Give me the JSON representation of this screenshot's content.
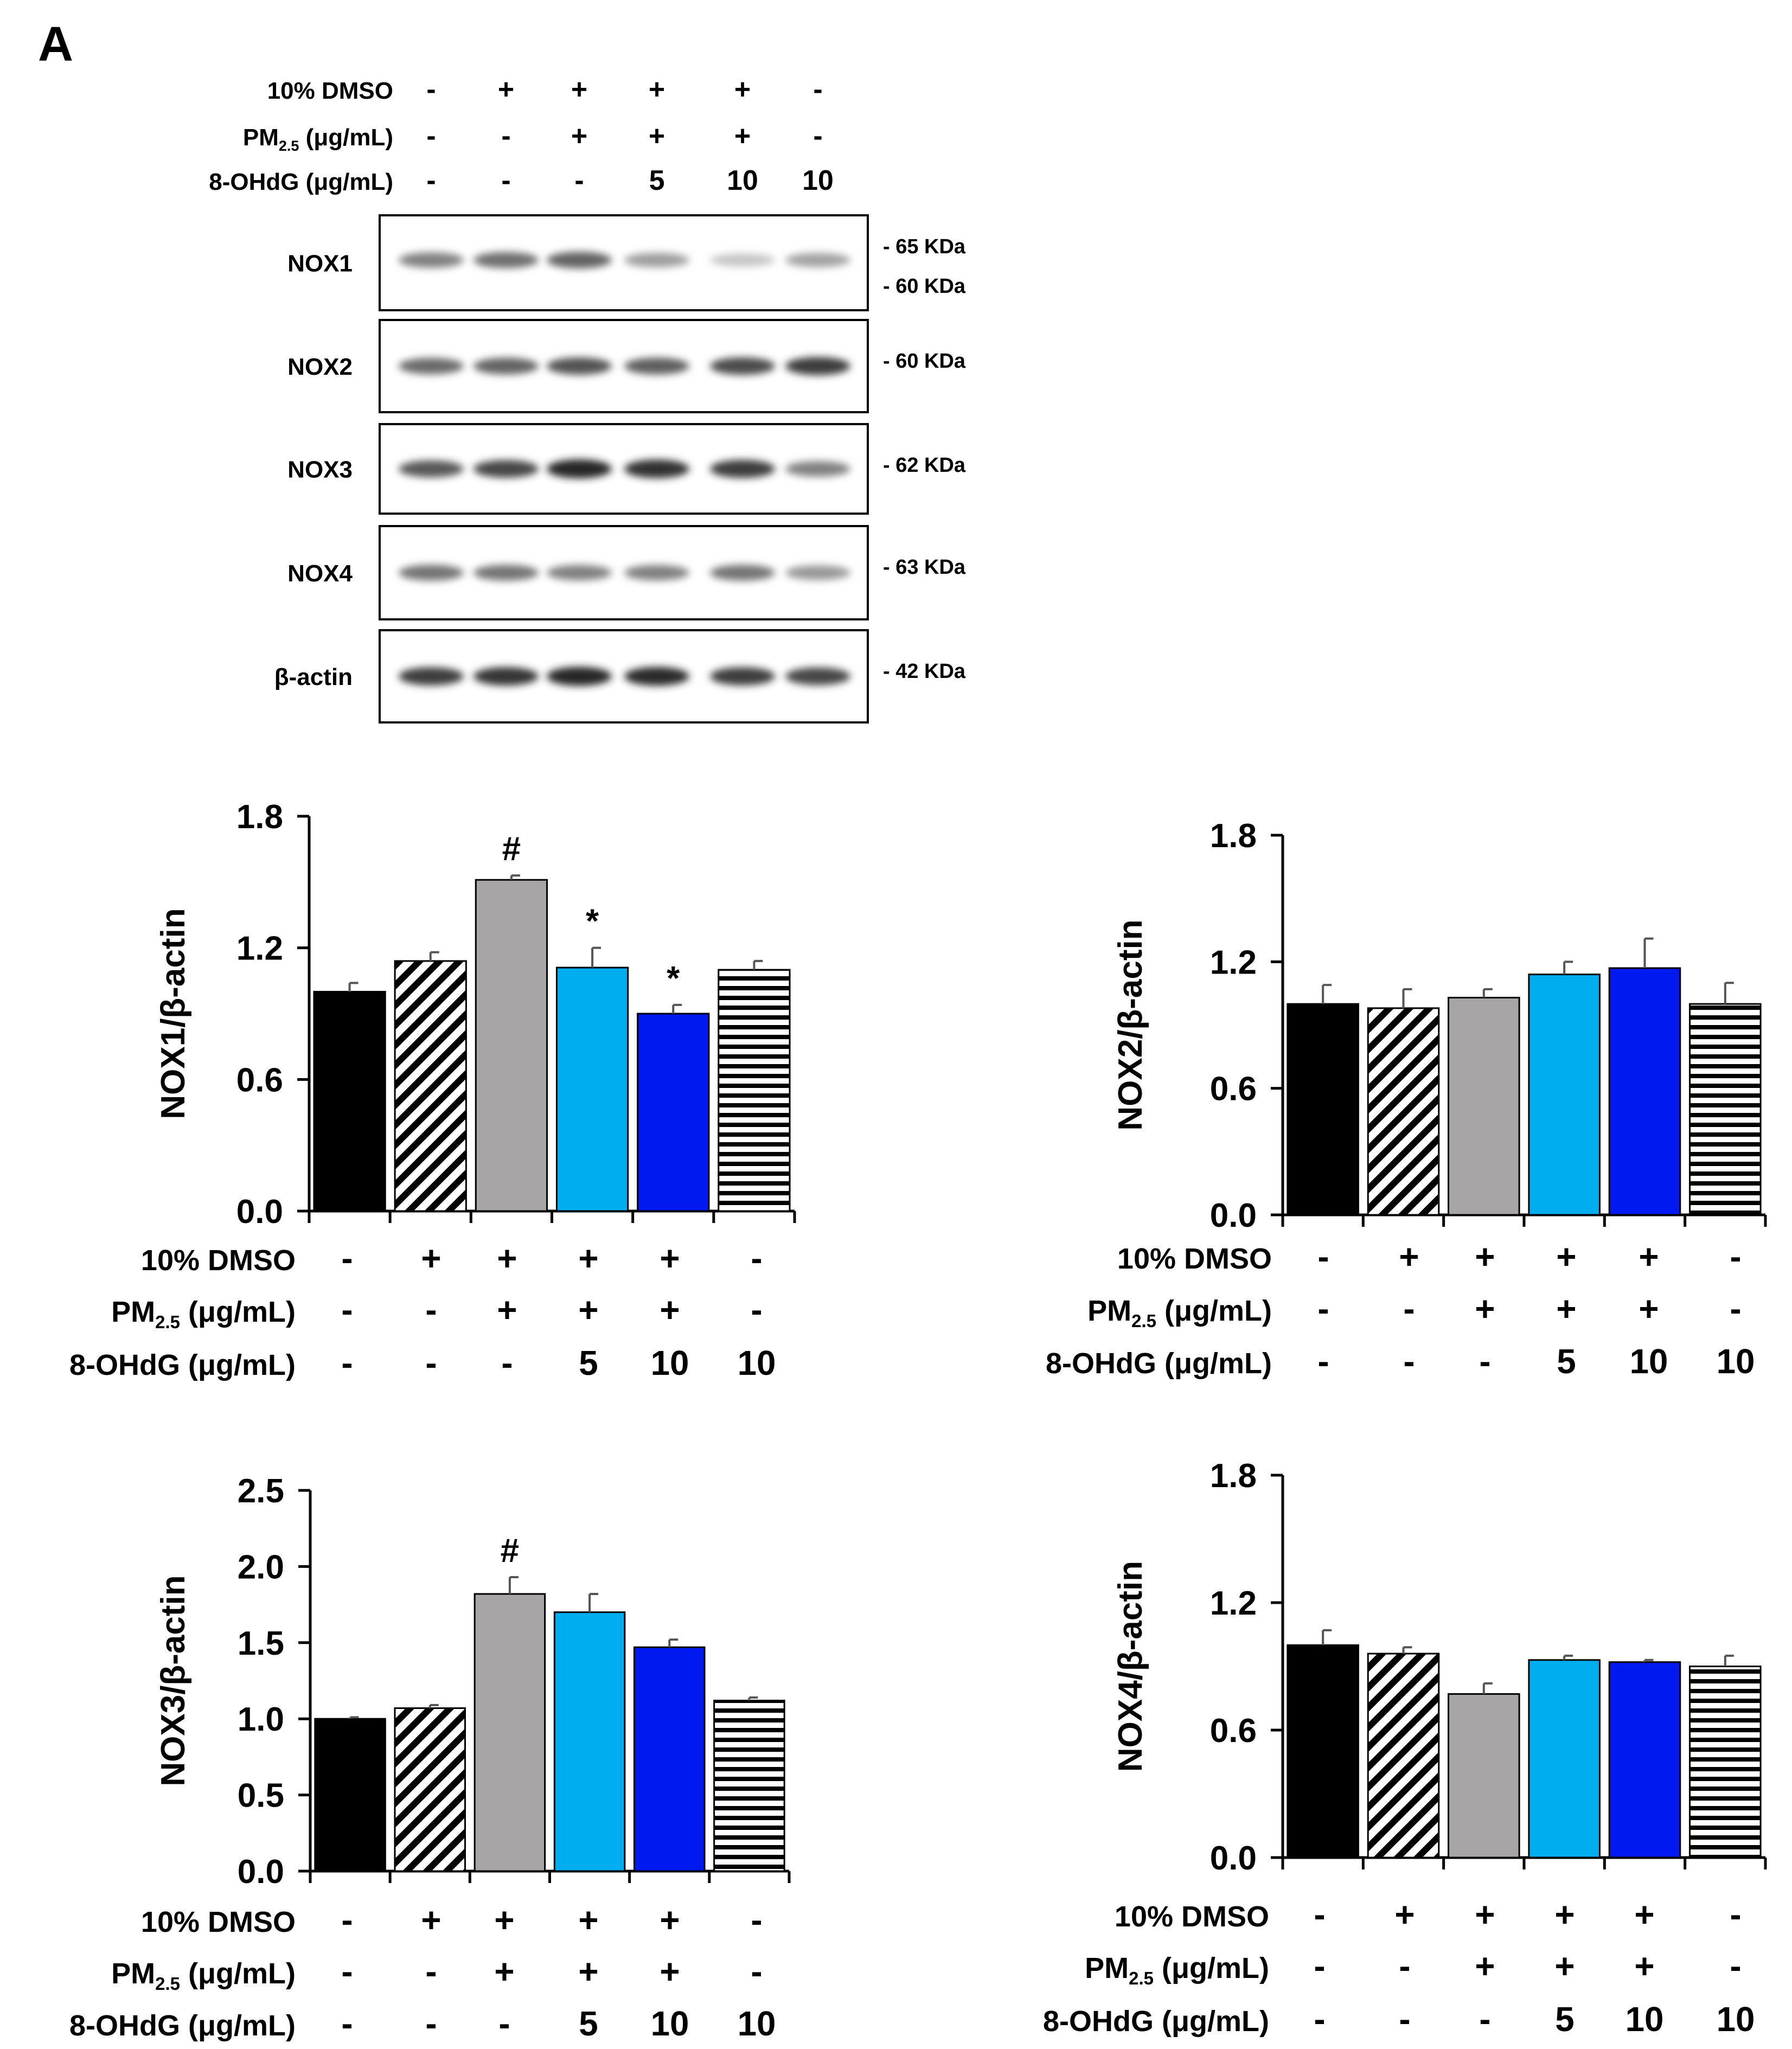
{
  "panel_label": "A",
  "conditions": {
    "row_labels": [
      "10% DMSO",
      "PM2.5 (μg/mL)",
      "8-OHdG (μg/mL)"
    ],
    "dmso": [
      "-",
      "+",
      "+",
      "+",
      "+",
      "-"
    ],
    "pm": [
      "-",
      "-",
      "+",
      "+",
      "+",
      "-"
    ],
    "ohdg": [
      "-",
      "-",
      "-",
      "5",
      "10",
      "10"
    ]
  },
  "blot": {
    "rows": [
      {
        "label": "NOX1",
        "markers": [
          "- 65 KDa",
          "- 60 KDa"
        ],
        "intensity": [
          0.55,
          0.62,
          0.68,
          0.42,
          0.25,
          0.4
        ]
      },
      {
        "label": "NOX2",
        "markers": [
          "- 60 KDa"
        ],
        "intensity": [
          0.65,
          0.68,
          0.75,
          0.7,
          0.78,
          0.85
        ]
      },
      {
        "label": "NOX3",
        "markers": [
          "- 62 KDa"
        ],
        "intensity": [
          0.72,
          0.8,
          0.95,
          0.9,
          0.85,
          0.55
        ]
      },
      {
        "label": "NOX4",
        "markers": [
          "- 63 KDa"
        ],
        "intensity": [
          0.6,
          0.6,
          0.55,
          0.55,
          0.6,
          0.45
        ]
      },
      {
        "label": "β-actin",
        "markers": [
          "- 42 KDa"
        ],
        "intensity": [
          0.85,
          0.88,
          0.95,
          0.92,
          0.85,
          0.8
        ]
      }
    ]
  },
  "colors": {
    "control": "#000000",
    "dmso": "#ffffff",
    "pm": "#a8a5a6",
    "ohdg5": "#00adef",
    "ohdg10": "#0019f0",
    "ohdg_only": "#ffffff"
  },
  "chart_data": [
    {
      "type": "bar",
      "id": "nox1",
      "ylabel": "NOX1/β-actin",
      "yticks": [
        "0.0",
        "0.6",
        "1.2",
        "1.8"
      ],
      "ylim": [
        0,
        1.8
      ],
      "values": [
        1.0,
        1.14,
        1.51,
        1.11,
        0.9,
        1.1
      ],
      "errors": [
        0.04,
        0.04,
        0.02,
        0.09,
        0.04,
        0.04
      ],
      "annotations": [
        "",
        "",
        "#",
        "*",
        "*",
        ""
      ]
    },
    {
      "type": "bar",
      "id": "nox2",
      "ylabel": "NOX2/β-actin",
      "yticks": [
        "0.0",
        "0.6",
        "1.2",
        "1.8"
      ],
      "ylim": [
        0,
        1.8
      ],
      "values": [
        1.0,
        0.98,
        1.03,
        1.14,
        1.17,
        1.0
      ],
      "errors": [
        0.09,
        0.09,
        0.04,
        0.06,
        0.14,
        0.1
      ],
      "annotations": [
        "",
        "",
        "",
        "",
        "",
        ""
      ]
    },
    {
      "type": "bar",
      "id": "nox3",
      "ylabel": "NOX3/β-actin",
      "yticks": [
        "0.0",
        "0.5",
        "1.0",
        "1.5",
        "2.0",
        "2.5"
      ],
      "ylim": [
        0,
        2.5
      ],
      "values": [
        1.0,
        1.07,
        1.82,
        1.7,
        1.47,
        1.12
      ],
      "errors": [
        0.01,
        0.02,
        0.11,
        0.12,
        0.05,
        0.02
      ],
      "annotations": [
        "",
        "",
        "#",
        "",
        "",
        ""
      ]
    },
    {
      "type": "bar",
      "id": "nox4",
      "ylabel": "NOX4/β-actin",
      "yticks": [
        "0.0",
        "0.6",
        "1.2",
        "1.8"
      ],
      "ylim": [
        0,
        1.8
      ],
      "values": [
        1.0,
        0.96,
        0.77,
        0.93,
        0.92,
        0.9
      ],
      "errors": [
        0.07,
        0.03,
        0.05,
        0.02,
        0.01,
        0.05
      ],
      "annotations": [
        "",
        "",
        "",
        "",
        "",
        ""
      ]
    }
  ]
}
